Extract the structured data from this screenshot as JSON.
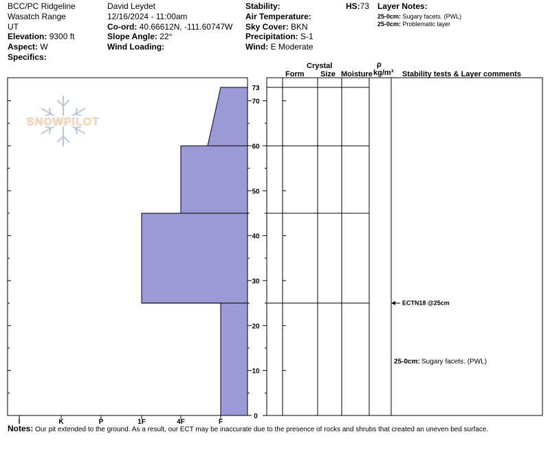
{
  "header": {
    "location_line1": "BCC/PC Ridgeline",
    "location_line2": "Wasatch Range",
    "location_line3": "UT",
    "elevation_label": "Elevation:",
    "elevation_value": "9300 ft",
    "aspect_label": "Aspect:",
    "aspect_value": "W",
    "specifics_label": "Specifics:",
    "observer": "David Leydet",
    "datetime": "12/16/2024 - 11:00am",
    "coord_label": "Co-ord:",
    "coord_value": "40.66612N, -111.60747W",
    "slope_label": "Slope Angle:",
    "slope_value": "22°",
    "wind_loading_label": "Wind Loading:",
    "stability_label": "Stability:",
    "air_temp_label": "Air Temperature:",
    "sky_label": "Sky Cover:",
    "sky_value": "BKN",
    "precip_label": "Precipitation:",
    "precip_value": "S-1",
    "wind_label": "Wind:",
    "wind_value": "E Moderate",
    "hs_label": "HS:",
    "hs_value": "73",
    "layer_notes_label": "Layer Notes:",
    "layer_notes": [
      {
        "range": "25-0cm:",
        "text": "Sugary facets. (PWL)"
      },
      {
        "range": "25-0cm:",
        "text": "Problematic layer"
      }
    ]
  },
  "logo_text": "SNOWPILOT",
  "table_headers": {
    "crystal": "Crystal",
    "form": "Form",
    "size": "Size",
    "moisture": "Moisture",
    "rho": "ρ",
    "density_unit": "kg/m³",
    "comments": "Stability tests & Layer comments"
  },
  "chart_data": {
    "type": "area",
    "description_axis_y": "Depth (cm)",
    "y_ticks": [
      "0",
      "10",
      "20",
      "30",
      "40",
      "50",
      "60",
      "70",
      "73"
    ],
    "ylim": [
      0,
      73
    ],
    "hardness_scale": [
      "I",
      "K",
      "P",
      "1F",
      "4F",
      "F"
    ],
    "layers": [
      {
        "top": 73,
        "bottom": 60,
        "hardness_top": "F",
        "hardness_bottom": "4F+"
      },
      {
        "top": 60,
        "bottom": 45,
        "hardness": "4F"
      },
      {
        "top": 45,
        "bottom": 25,
        "hardness": "1F"
      },
      {
        "top": 25,
        "bottom": 0,
        "hardness": "F"
      }
    ],
    "layer_boundaries": [
      73,
      60,
      45,
      25
    ],
    "stability_test": {
      "label": "ECTN18 @25cm",
      "depth": 25
    },
    "layer_comment": {
      "range": "25-0cm:",
      "text": "Sugary facets. (PWL)",
      "depth": 12
    },
    "fill_color": "#9b9ad6"
  },
  "notes": {
    "label": "Notes:",
    "text": "Our pit extended to the ground. As a result, our ECT may be inaccurate due to the presence of rocks and shrubs that created an uneven bed surface."
  }
}
